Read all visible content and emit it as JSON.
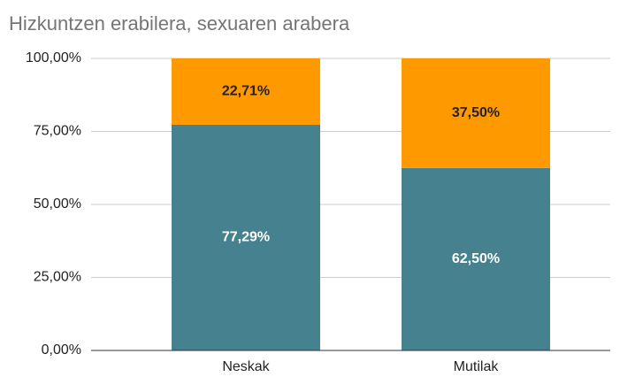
{
  "chart_data": {
    "type": "stacked_bar",
    "title": "Hizkuntzen erabilera, sexuaren arabera",
    "categories": [
      "Neskak",
      "Mutilak"
    ],
    "series": [
      {
        "color": "#45818e",
        "values": [
          77.29,
          62.5
        ],
        "value_labels": [
          "77,29%",
          "62,50%"
        ],
        "label_color": "#ffffff"
      },
      {
        "color": "#ff9900",
        "values": [
          22.71,
          37.5
        ],
        "value_labels": [
          "22,71%",
          "37,50%"
        ],
        "label_color": "#222222"
      }
    ],
    "ylim": [
      0,
      100
    ],
    "yticks": [
      {
        "value": 0,
        "label": "0,00%"
      },
      {
        "value": 25,
        "label": "25,00%"
      },
      {
        "value": 50,
        "label": "50,00%"
      },
      {
        "value": 75,
        "label": "75,00%"
      },
      {
        "value": 100,
        "label": "100,00%"
      }
    ],
    "grid": true
  }
}
